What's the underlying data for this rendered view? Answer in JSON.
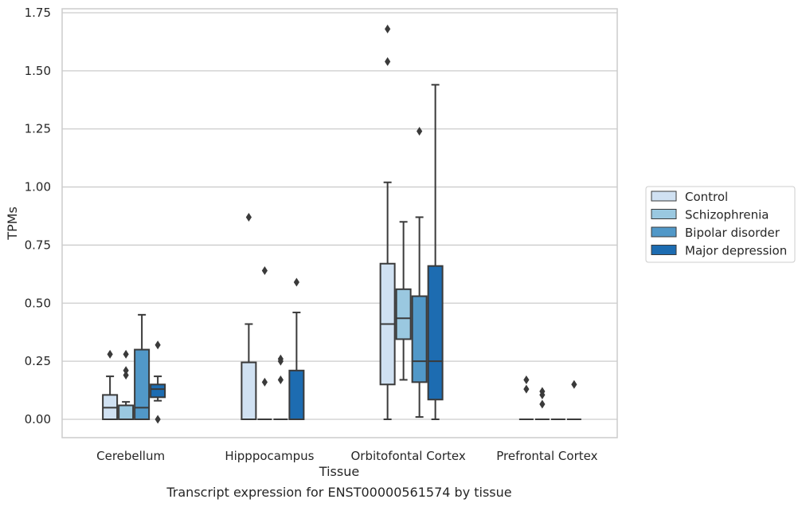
{
  "chart_data": {
    "type": "boxplot",
    "title": "",
    "caption": "Transcript expression for ENST00000561574 by tissue",
    "xlabel": "Tissue",
    "ylabel": "TPMs",
    "ylim": [
      -0.08,
      1.76
    ],
    "yticks": [
      "0.00",
      "0.25",
      "0.50",
      "0.75",
      "1.00",
      "1.25",
      "1.50",
      "1.75"
    ],
    "ytick_values": [
      0,
      0.25,
      0.5,
      0.75,
      1.0,
      1.25,
      1.5,
      1.75
    ],
    "grid": true,
    "legend_position": "right",
    "categories": [
      "Cerebellum",
      "Hipppocampus",
      "Orbitofontal Cortex",
      "Prefrontal Cortex"
    ],
    "series": [
      {
        "name": "Control",
        "color": "#d0e1f2",
        "boxes": [
          {
            "whislo": 0,
            "q1": 0,
            "med": 0.05,
            "q3": 0.105,
            "whishi": 0.185,
            "fliers": [
              0.28
            ]
          },
          {
            "whislo": 0,
            "q1": 0,
            "med": 0,
            "q3": 0.245,
            "whishi": 0.41,
            "fliers": [
              0.87
            ]
          },
          {
            "whislo": 0,
            "q1": 0.15,
            "med": 0.41,
            "q3": 0.67,
            "whishi": 1.02,
            "fliers": [
              1.54,
              1.68
            ]
          },
          {
            "whislo": 0,
            "q1": 0,
            "med": 0,
            "q3": 0,
            "whishi": 0,
            "fliers": [
              0.13,
              0.17
            ]
          }
        ]
      },
      {
        "name": "Schizophrenia",
        "color": "#9ac8e0",
        "boxes": [
          {
            "whislo": 0,
            "q1": 0,
            "med": 0,
            "q3": 0.06,
            "whishi": 0.075,
            "fliers": [
              0.19,
              0.21,
              0.28
            ]
          },
          {
            "whislo": 0,
            "q1": 0,
            "med": 0,
            "q3": 0,
            "whishi": 0,
            "fliers": [
              0.16,
              0.64
            ]
          },
          {
            "whislo": 0.17,
            "q1": 0.345,
            "med": 0.435,
            "q3": 0.56,
            "whishi": 0.85,
            "fliers": []
          },
          {
            "whislo": 0,
            "q1": 0,
            "med": 0,
            "q3": 0,
            "whishi": 0,
            "fliers": [
              0.065,
              0.105,
              0.12
            ]
          }
        ]
      },
      {
        "name": "Bipolar disorder",
        "color": "#5198c8",
        "boxes": [
          {
            "whislo": 0,
            "q1": 0,
            "med": 0.05,
            "q3": 0.3,
            "whishi": 0.45,
            "fliers": []
          },
          {
            "whislo": 0,
            "q1": 0,
            "med": 0,
            "q3": 0,
            "whishi": 0,
            "fliers": [
              0.17,
              0.25,
              0.26
            ]
          },
          {
            "whislo": 0.01,
            "q1": 0.16,
            "med": 0.25,
            "q3": 0.53,
            "whishi": 0.87,
            "fliers": [
              1.24
            ]
          },
          {
            "whislo": 0,
            "q1": 0,
            "med": 0,
            "q3": 0,
            "whishi": 0,
            "fliers": []
          }
        ]
      },
      {
        "name": "Major depression",
        "color": "#1d6cb1",
        "boxes": [
          {
            "whislo": 0.08,
            "q1": 0.095,
            "med": 0.13,
            "q3": 0.15,
            "whishi": 0.185,
            "fliers": [
              0.0,
              0.32
            ]
          },
          {
            "whislo": 0,
            "q1": 0,
            "med": 0,
            "q3": 0.21,
            "whishi": 0.46,
            "fliers": [
              0.59
            ]
          },
          {
            "whislo": 0,
            "q1": 0.085,
            "med": 0.25,
            "q3": 0.66,
            "whishi": 1.44,
            "fliers": []
          },
          {
            "whislo": 0,
            "q1": 0,
            "med": 0,
            "q3": 0,
            "whishi": 0,
            "fliers": [
              0.15
            ]
          }
        ]
      }
    ]
  }
}
